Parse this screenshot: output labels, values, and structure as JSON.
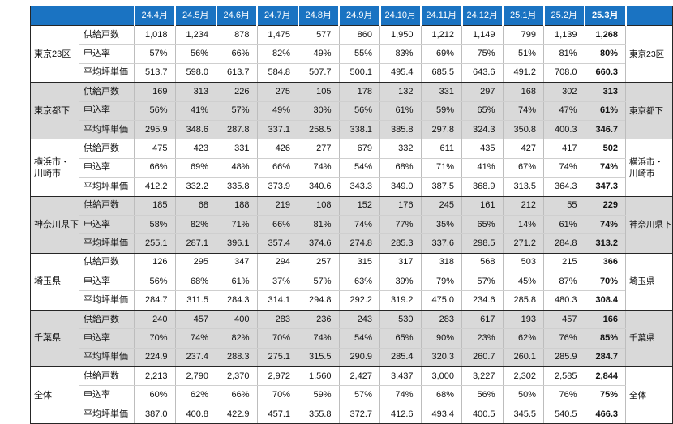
{
  "header": {
    "corner": "",
    "right_corner": "",
    "months": [
      "24.4月",
      "24.5月",
      "24.6月",
      "24.7月",
      "24.8月",
      "24.9月",
      "24.10月",
      "24.11月",
      "24.12月",
      "25.1月",
      "25.2月",
      "25.3月"
    ]
  },
  "metrics": [
    "供給戸数",
    "申込率",
    "平均坪単価"
  ],
  "groups": [
    {
      "name": "東京23区",
      "side_label": "東京23区",
      "rows": [
        [
          "1,018",
          "1,234",
          "878",
          "1,475",
          "577",
          "860",
          "1,950",
          "1,212",
          "1,149",
          "799",
          "1,139",
          "1,268"
        ],
        [
          "57%",
          "56%",
          "66%",
          "82%",
          "49%",
          "55%",
          "83%",
          "69%",
          "75%",
          "51%",
          "81%",
          "80%"
        ],
        [
          "513.7",
          "598.0",
          "613.7",
          "584.8",
          "507.7",
          "500.1",
          "495.4",
          "685.5",
          "643.6",
          "491.2",
          "708.0",
          "660.3"
        ]
      ]
    },
    {
      "name": "東京都下",
      "side_label": "東京都下",
      "rows": [
        [
          "169",
          "313",
          "226",
          "275",
          "105",
          "178",
          "132",
          "331",
          "297",
          "168",
          "302",
          "313"
        ],
        [
          "56%",
          "41%",
          "57%",
          "49%",
          "30%",
          "56%",
          "61%",
          "59%",
          "65%",
          "74%",
          "47%",
          "61%"
        ],
        [
          "295.9",
          "348.6",
          "287.8",
          "337.1",
          "258.5",
          "338.1",
          "385.8",
          "297.8",
          "324.3",
          "350.8",
          "400.3",
          "346.7"
        ]
      ]
    },
    {
      "name": "横浜市・\n川崎市",
      "side_label": "横浜市・\n川崎市",
      "rows": [
        [
          "475",
          "423",
          "331",
          "426",
          "277",
          "679",
          "332",
          "611",
          "435",
          "427",
          "417",
          "502"
        ],
        [
          "66%",
          "69%",
          "48%",
          "66%",
          "74%",
          "54%",
          "68%",
          "71%",
          "41%",
          "67%",
          "74%",
          "74%"
        ],
        [
          "412.2",
          "332.2",
          "335.8",
          "373.9",
          "340.6",
          "343.3",
          "349.0",
          "387.5",
          "368.9",
          "313.5",
          "364.3",
          "347.3"
        ]
      ]
    },
    {
      "name": "神奈川県下",
      "side_label": "神奈川県下",
      "rows": [
        [
          "185",
          "68",
          "188",
          "219",
          "108",
          "152",
          "176",
          "245",
          "161",
          "212",
          "55",
          "229"
        ],
        [
          "58%",
          "82%",
          "71%",
          "66%",
          "81%",
          "74%",
          "77%",
          "35%",
          "65%",
          "14%",
          "61%",
          "74%"
        ],
        [
          "255.1",
          "287.1",
          "396.1",
          "357.4",
          "374.6",
          "274.8",
          "285.3",
          "337.6",
          "298.5",
          "271.2",
          "284.8",
          "313.2"
        ]
      ]
    },
    {
      "name": "埼玉県",
      "side_label": "埼玉県",
      "rows": [
        [
          "126",
          "295",
          "347",
          "294",
          "257",
          "315",
          "317",
          "318",
          "568",
          "503",
          "215",
          "366"
        ],
        [
          "56%",
          "68%",
          "61%",
          "37%",
          "57%",
          "63%",
          "39%",
          "79%",
          "57%",
          "45%",
          "87%",
          "70%"
        ],
        [
          "284.7",
          "311.5",
          "284.3",
          "314.1",
          "294.8",
          "292.2",
          "319.2",
          "475.0",
          "234.6",
          "285.8",
          "480.3",
          "308.4"
        ]
      ]
    },
    {
      "name": "千葉県",
      "side_label": "千葉県",
      "rows": [
        [
          "240",
          "457",
          "400",
          "283",
          "236",
          "243",
          "530",
          "283",
          "617",
          "193",
          "457",
          "166"
        ],
        [
          "70%",
          "74%",
          "82%",
          "70%",
          "74%",
          "54%",
          "65%",
          "90%",
          "23%",
          "62%",
          "76%",
          "85%"
        ],
        [
          "224.9",
          "237.4",
          "288.3",
          "275.1",
          "315.5",
          "290.9",
          "285.4",
          "320.3",
          "260.7",
          "260.1",
          "285.9",
          "284.7"
        ]
      ]
    },
    {
      "name": "全体",
      "side_label": "全体",
      "rows": [
        [
          "2,213",
          "2,790",
          "2,370",
          "2,972",
          "1,560",
          "2,427",
          "3,437",
          "3,000",
          "3,227",
          "2,302",
          "2,585",
          "2,844"
        ],
        [
          "60%",
          "62%",
          "66%",
          "70%",
          "59%",
          "57%",
          "74%",
          "68%",
          "56%",
          "50%",
          "76%",
          "75%"
        ],
        [
          "387.0",
          "400.8",
          "422.9",
          "457.1",
          "355.8",
          "372.7",
          "412.6",
          "493.4",
          "400.5",
          "345.5",
          "540.5",
          "466.3"
        ]
      ]
    }
  ],
  "colors": {
    "header_bg": "#1a73c2",
    "band_gray": "#d9d9d9",
    "border_dark": "#262626",
    "border_light": "#bdbdbd"
  }
}
